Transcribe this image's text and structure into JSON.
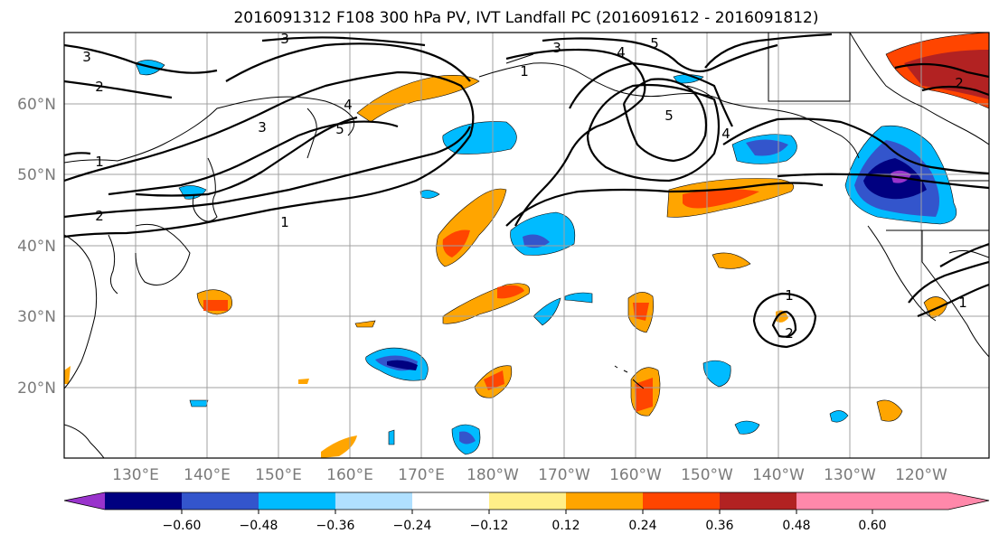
{
  "title": "2016091312 F108 300 hPa PV, IVT Landfall PC (2016091612 - 2016091812)",
  "lat_labels": [
    "60°N",
    "50°N",
    "40°N",
    "30°N",
    "20°N"
  ],
  "lon_labels": [
    "130°E",
    "140°E",
    "150°E",
    "160°E",
    "170°E",
    "180°W",
    "170°W",
    "160°W",
    "150°W",
    "140°W",
    "130°W",
    "120°W"
  ],
  "colorbar": {
    "colors": [
      "#9933cc",
      "#000080",
      "#3355cc",
      "#00bbff",
      "#b0e0ff",
      "#ffffff",
      "#ffee88",
      "#ffa500",
      "#ff4500",
      "#b22222",
      "#ff88aa"
    ],
    "tick_labels": [
      "−0.60",
      "−0.48",
      "−0.36",
      "−0.24",
      "−0.12",
      "0.12",
      "0.24",
      "0.36",
      "0.48",
      "0.60"
    ]
  },
  "contour_labels": [
    "3",
    "2",
    "1",
    "2",
    "3",
    "4",
    "5",
    "1",
    "3",
    "4",
    "5",
    "1",
    "5",
    "4",
    "3",
    "2",
    "1",
    "1",
    "2"
  ]
}
